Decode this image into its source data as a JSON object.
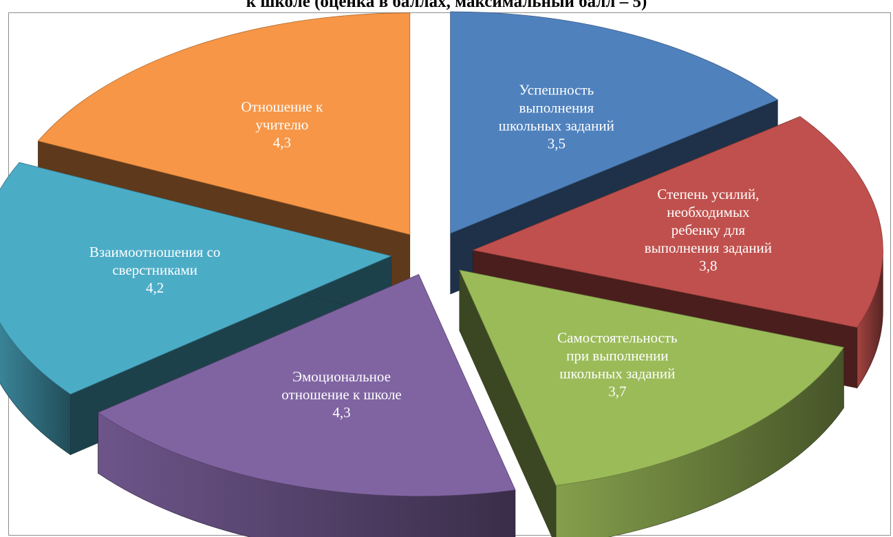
{
  "chart_data": {
    "type": "pie",
    "title": "к школе (оценка в баллах, максимальный балл – 5)",
    "slices": [
      {
        "label": "Успешность выполнения школьных заданий",
        "label_lines": [
          "Успешность",
          "выполнения",
          "школьных заданий"
        ],
        "value": 3.5,
        "value_text": "3,5",
        "color": "#4f81bd"
      },
      {
        "label": "Степень усилий, необходимых ребенку для выполнения заданий",
        "label_lines": [
          "Степень усилий,",
          "необходимых",
          "ребенку для",
          "выполнения заданий"
        ],
        "value": 3.8,
        "value_text": "3,8",
        "color": "#c0504d"
      },
      {
        "label": "Самостоятельность при выполнении школьных заданий",
        "label_lines": [
          "Самостоятельность",
          "при выполнении",
          "школьных заданий"
        ],
        "value": 3.7,
        "value_text": "3,7",
        "color": "#9bbb59"
      },
      {
        "label": "Эмоциональное отношение к школе",
        "label_lines": [
          "Эмоциональное",
          "отношение к школе"
        ],
        "value": 4.3,
        "value_text": "4,3",
        "color": "#8064a2"
      },
      {
        "label": "Взаимоотношения со сверстниками",
        "label_lines": [
          "Взаимоотношения со",
          "сверстниками"
        ],
        "value": 4.2,
        "value_text": "4,2",
        "color": "#4bacc6"
      },
      {
        "label": "Отношение к учителю",
        "label_lines": [
          "Отношение к",
          "учителю"
        ],
        "value": 4.3,
        "value_text": "4,3",
        "color": "#f79646"
      }
    ],
    "style": "3d-exploded",
    "legend": "none"
  }
}
